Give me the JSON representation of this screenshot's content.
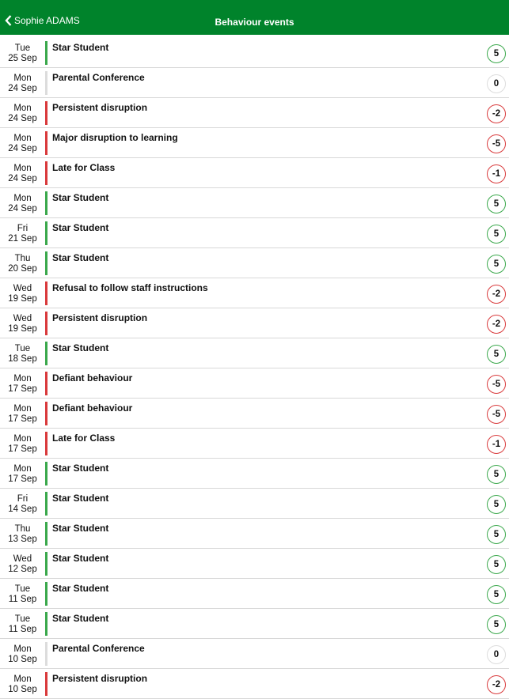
{
  "header": {
    "back_label": "Sophie ADAMS",
    "title": "Behaviour events"
  },
  "colors": {
    "positive": "#3aa84b",
    "negative": "#d9393b",
    "neutral": "#dcdcdc"
  },
  "events": [
    {
      "day": "Tue",
      "date": "25 Sep",
      "label": "Star Student",
      "points": "5",
      "type": "positive"
    },
    {
      "day": "Mon",
      "date": "24 Sep",
      "label": "Parental Conference",
      "points": "0",
      "type": "neutral"
    },
    {
      "day": "Mon",
      "date": "24 Sep",
      "label": "Persistent disruption",
      "points": "-2",
      "type": "negative"
    },
    {
      "day": "Mon",
      "date": "24 Sep",
      "label": "Major disruption to learning",
      "points": "-5",
      "type": "negative"
    },
    {
      "day": "Mon",
      "date": "24 Sep",
      "label": "Late for Class",
      "points": "-1",
      "type": "negative"
    },
    {
      "day": "Mon",
      "date": "24 Sep",
      "label": "Star Student",
      "points": "5",
      "type": "positive"
    },
    {
      "day": "Fri",
      "date": "21 Sep",
      "label": "Star Student",
      "points": "5",
      "type": "positive"
    },
    {
      "day": "Thu",
      "date": "20 Sep",
      "label": "Star Student",
      "points": "5",
      "type": "positive"
    },
    {
      "day": "Wed",
      "date": "19 Sep",
      "label": "Refusal to follow staff instructions",
      "points": "-2",
      "type": "negative"
    },
    {
      "day": "Wed",
      "date": "19 Sep",
      "label": "Persistent disruption",
      "points": "-2",
      "type": "negative"
    },
    {
      "day": "Tue",
      "date": "18 Sep",
      "label": "Star Student",
      "points": "5",
      "type": "positive"
    },
    {
      "day": "Mon",
      "date": "17 Sep",
      "label": "Defiant behaviour",
      "points": "-5",
      "type": "negative"
    },
    {
      "day": "Mon",
      "date": "17 Sep",
      "label": "Defiant behaviour",
      "points": "-5",
      "type": "negative"
    },
    {
      "day": "Mon",
      "date": "17 Sep",
      "label": "Late for Class",
      "points": "-1",
      "type": "negative"
    },
    {
      "day": "Mon",
      "date": "17 Sep",
      "label": "Star Student",
      "points": "5",
      "type": "positive"
    },
    {
      "day": "Fri",
      "date": "14 Sep",
      "label": "Star Student",
      "points": "5",
      "type": "positive"
    },
    {
      "day": "Thu",
      "date": "13 Sep",
      "label": "Star Student",
      "points": "5",
      "type": "positive"
    },
    {
      "day": "Wed",
      "date": "12 Sep",
      "label": "Star Student",
      "points": "5",
      "type": "positive"
    },
    {
      "day": "Tue",
      "date": "11 Sep",
      "label": "Star Student",
      "points": "5",
      "type": "positive"
    },
    {
      "day": "Tue",
      "date": "11 Sep",
      "label": "Star Student",
      "points": "5",
      "type": "positive"
    },
    {
      "day": "Mon",
      "date": "10 Sep",
      "label": "Parental Conference",
      "points": "0",
      "type": "neutral"
    },
    {
      "day": "Mon",
      "date": "10 Sep",
      "label": "Persistent disruption",
      "points": "-2",
      "type": "negative"
    }
  ]
}
